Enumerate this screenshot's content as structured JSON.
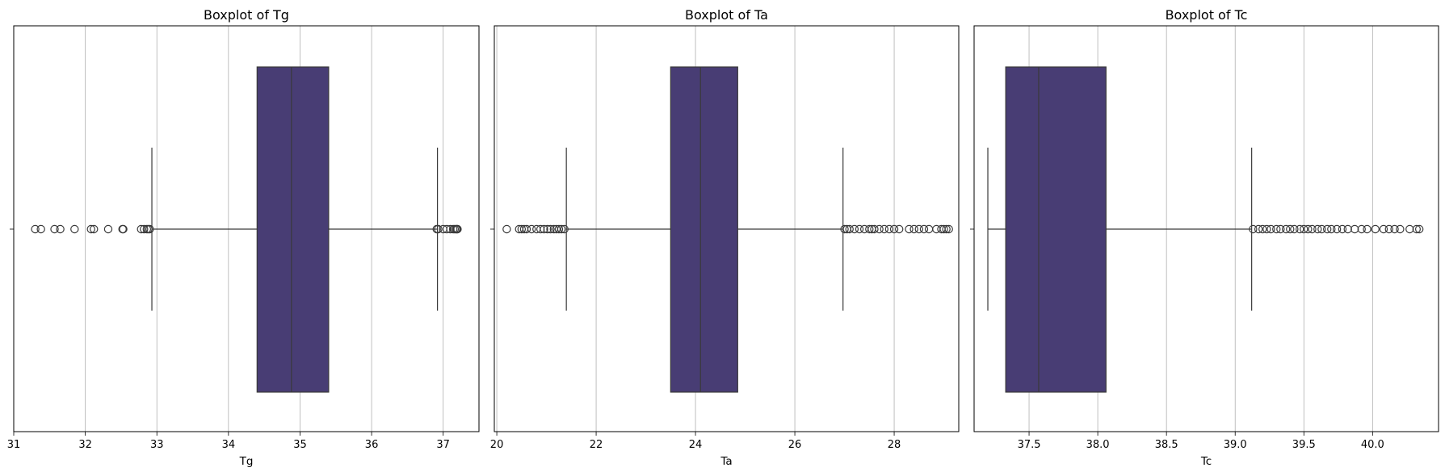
{
  "chart_data": [
    {
      "type": "boxplot",
      "title": "Boxplot of Tg",
      "xlabel": "Tg",
      "xlim": [
        31.0,
        37.5
      ],
      "xticks": [
        31,
        32,
        33,
        34,
        35,
        36,
        37
      ],
      "grid": "vertical",
      "color": "#483d74",
      "box": {
        "q1": 34.4,
        "median": 34.88,
        "q3": 35.4,
        "whisker_low": 32.93,
        "whisker_high": 36.92
      },
      "outliers": [
        31.3,
        31.38,
        31.57,
        31.65,
        31.85,
        32.08,
        32.12,
        32.32,
        32.52,
        32.53,
        32.78,
        32.82,
        32.86,
        32.88,
        32.9,
        36.91,
        36.93,
        37.0,
        37.05,
        37.1,
        37.14,
        37.16,
        37.18,
        37.19,
        37.2
      ]
    },
    {
      "type": "boxplot",
      "title": "Boxplot of Ta",
      "xlabel": "Ta",
      "xlim": [
        19.95,
        29.3
      ],
      "xticks": [
        20,
        22,
        24,
        26,
        28
      ],
      "grid": "vertical",
      "color": "#483d74",
      "box": {
        "q1": 23.5,
        "median": 24.1,
        "q3": 24.85,
        "whisker_low": 21.4,
        "whisker_high": 26.97
      },
      "outliers": [
        20.2,
        20.45,
        20.5,
        20.55,
        20.6,
        20.7,
        20.8,
        20.88,
        20.95,
        21.02,
        21.08,
        21.15,
        21.2,
        21.25,
        21.3,
        21.36,
        27.0,
        27.05,
        27.1,
        27.2,
        27.3,
        27.4,
        27.5,
        27.55,
        27.6,
        27.7,
        27.8,
        27.9,
        28.0,
        28.1,
        28.3,
        28.4,
        28.5,
        28.6,
        28.7,
        28.85,
        28.95,
        29.0,
        29.05,
        29.1
      ]
    },
    {
      "type": "boxplot",
      "title": "Boxplot of Tc",
      "xlabel": "Tc",
      "xlim": [
        37.1,
        40.48
      ],
      "xticks": [
        37.5,
        38.0,
        38.5,
        39.0,
        39.5,
        40.0
      ],
      "xtick_labels": [
        "37.5",
        "38.0",
        "38.5",
        "39.0",
        "39.5",
        "40.0"
      ],
      "grid": "vertical",
      "color": "#483d74",
      "box": {
        "q1": 37.33,
        "median": 37.57,
        "q3": 38.06,
        "whisker_low": 37.2,
        "whisker_high": 39.12
      },
      "outliers": [
        39.13,
        39.17,
        39.2,
        39.23,
        39.26,
        39.3,
        39.33,
        39.37,
        39.4,
        39.43,
        39.47,
        39.5,
        39.53,
        39.56,
        39.6,
        39.63,
        39.67,
        39.7,
        39.74,
        39.78,
        39.82,
        39.87,
        39.92,
        39.96,
        40.02,
        40.08,
        40.12,
        40.16,
        40.2,
        40.27,
        40.32,
        40.34
      ]
    }
  ]
}
